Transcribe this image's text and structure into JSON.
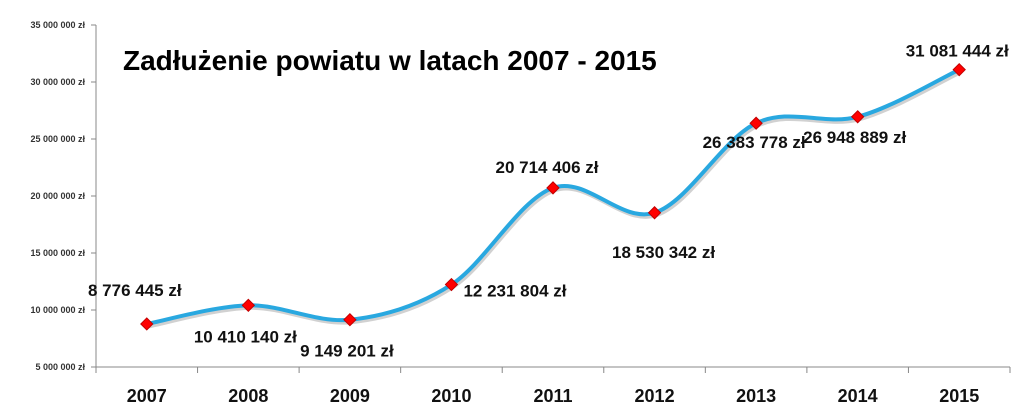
{
  "chart_data": {
    "type": "line",
    "title": "Zadłużenie powiatu w latach 2007 - 2015",
    "categories": [
      "2007",
      "2008",
      "2009",
      "2010",
      "2011",
      "2012",
      "2013",
      "2014",
      "2015"
    ],
    "series": [
      {
        "values": [
          8776445,
          10410140,
          9149201,
          12231804,
          20714406,
          18530342,
          26383778,
          26948889,
          31081444
        ],
        "data_labels": [
          "8 776 445 zł",
          "10 410 140 zł",
          "9 149 201 zł",
          "12 231 804 zł",
          "20 714 406 zł",
          "18 530 342 zł",
          "26 383 778 zł",
          "26 948 889 zł",
          "31 081 444 zł"
        ]
      }
    ],
    "yticks": [
      5000000,
      10000000,
      15000000,
      20000000,
      25000000,
      30000000,
      35000000
    ],
    "ytick_labels": [
      "5 000 000 zł",
      "10 000 000 zł",
      "15 000 000 zł",
      "20 000 000 zł",
      "25 000 000 zł",
      "30 000 000 zł",
      "35 000 000 zł"
    ],
    "ylim": [
      5000000,
      35000000
    ],
    "smoothed": true,
    "grid": false,
    "legend": "none",
    "colors": {
      "line": "#29a8e0",
      "marker": "#ff0000",
      "axis": "#888888"
    }
  }
}
